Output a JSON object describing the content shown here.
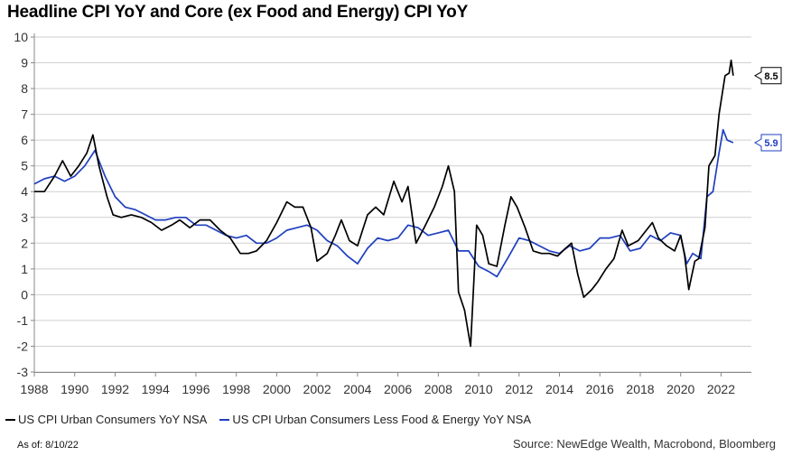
{
  "title": "Headline CPI YoY and Core (ex Food and Energy) CPI YoY",
  "legend": {
    "headline": "US CPI Urban Consumers YoY NSA",
    "core": "US CPI Urban Consumers Less Food & Energy YoY NSA"
  },
  "as_of": "As of: 8/10/22",
  "source": "Source: NewEdge Wealth, Macrobond, Bloomberg",
  "colors": {
    "headline": "#000000",
    "core": "#1f3fbf",
    "grid": "#cfcfcf"
  },
  "chart_data": {
    "type": "line",
    "title": "Headline CPI YoY and Core (ex Food and Energy) CPI YoY",
    "xlim": [
      1988,
      2023.5
    ],
    "ylim": [
      -3,
      10
    ],
    "x_ticks": [
      1988,
      1990,
      1992,
      1994,
      1996,
      1998,
      2000,
      2002,
      2004,
      2006,
      2008,
      2010,
      2012,
      2014,
      2016,
      2018,
      2020,
      2022
    ],
    "y_ticks": [
      -3,
      -2,
      -1,
      0,
      1,
      2,
      3,
      4,
      5,
      6,
      7,
      8,
      9,
      10
    ],
    "grid": "horizontal",
    "legend_position": "bottom",
    "series": [
      {
        "name": "US CPI Urban Consumers YoY NSA",
        "color": "#000000",
        "x": [
          1988.0,
          1988.5,
          1989.0,
          1989.4,
          1989.8,
          1990.2,
          1990.6,
          1990.9,
          1991.2,
          1991.6,
          1991.9,
          1992.3,
          1992.8,
          1993.3,
          1993.8,
          1994.3,
          1994.8,
          1995.2,
          1995.7,
          1996.2,
          1996.7,
          1997.2,
          1997.7,
          1998.2,
          1998.6,
          1999.0,
          1999.5,
          2000.0,
          2000.5,
          2000.9,
          2001.3,
          2001.7,
          2002.0,
          2002.5,
          2002.9,
          2003.2,
          2003.6,
          2004.0,
          2004.5,
          2004.9,
          2005.3,
          2005.8,
          2006.2,
          2006.5,
          2006.9,
          2007.3,
          2007.8,
          2008.2,
          2008.5,
          2008.8,
          2009.0,
          2009.3,
          2009.6,
          2009.9,
          2010.2,
          2010.5,
          2010.9,
          2011.3,
          2011.6,
          2011.9,
          2012.3,
          2012.7,
          2013.1,
          2013.5,
          2013.9,
          2014.3,
          2014.6,
          2014.9,
          2015.2,
          2015.6,
          2015.9,
          2016.3,
          2016.7,
          2017.1,
          2017.4,
          2017.9,
          2018.3,
          2018.6,
          2018.9,
          2019.3,
          2019.7,
          2020.0,
          2020.2,
          2020.4,
          2020.7,
          2020.9,
          2021.2,
          2021.4,
          2021.7,
          2021.9,
          2022.2,
          2022.4,
          2022.5,
          2022.6
        ],
        "values": [
          4.0,
          4.0,
          4.6,
          5.2,
          4.6,
          5.0,
          5.5,
          6.2,
          5.0,
          3.8,
          3.1,
          3.0,
          3.1,
          3.0,
          2.8,
          2.5,
          2.7,
          2.9,
          2.6,
          2.9,
          2.9,
          2.5,
          2.2,
          1.6,
          1.6,
          1.7,
          2.1,
          2.8,
          3.6,
          3.4,
          3.4,
          2.6,
          1.3,
          1.6,
          2.3,
          2.9,
          2.1,
          1.9,
          3.1,
          3.4,
          3.1,
          4.4,
          3.6,
          4.2,
          2.0,
          2.6,
          3.4,
          4.2,
          5.0,
          4.0,
          0.1,
          -0.6,
          -2.0,
          2.7,
          2.3,
          1.2,
          1.1,
          2.7,
          3.8,
          3.4,
          2.6,
          1.7,
          1.6,
          1.6,
          1.5,
          1.8,
          2.0,
          0.8,
          -0.1,
          0.2,
          0.5,
          1.0,
          1.4,
          2.5,
          1.9,
          2.1,
          2.5,
          2.8,
          2.2,
          1.9,
          1.7,
          2.3,
          1.5,
          0.2,
          1.3,
          1.4,
          2.6,
          5.0,
          5.4,
          7.0,
          8.5,
          8.6,
          9.1,
          8.5
        ]
      },
      {
        "name": "US CPI Urban Consumers Less Food & Energy YoY NSA",
        "color": "#1f3fbf",
        "x": [
          1988.0,
          1988.5,
          1989.0,
          1989.5,
          1990.0,
          1990.5,
          1991.0,
          1991.5,
          1992.0,
          1992.5,
          1993.0,
          1993.5,
          1994.0,
          1994.5,
          1995.0,
          1995.5,
          1996.0,
          1996.5,
          1997.0,
          1997.5,
          1998.0,
          1998.5,
          1999.0,
          1999.5,
          2000.0,
          2000.5,
          2001.0,
          2001.5,
          2002.0,
          2002.5,
          2003.0,
          2003.5,
          2004.0,
          2004.5,
          2005.0,
          2005.5,
          2006.0,
          2006.5,
          2007.0,
          2007.5,
          2008.0,
          2008.5,
          2009.0,
          2009.5,
          2010.0,
          2010.5,
          2010.9,
          2011.5,
          2012.0,
          2012.5,
          2013.0,
          2013.5,
          2014.0,
          2014.5,
          2015.0,
          2015.5,
          2016.0,
          2016.5,
          2017.0,
          2017.5,
          2018.0,
          2018.5,
          2019.0,
          2019.5,
          2020.0,
          2020.3,
          2020.6,
          2021.0,
          2021.3,
          2021.6,
          2021.9,
          2022.1,
          2022.3,
          2022.6
        ],
        "values": [
          4.3,
          4.5,
          4.6,
          4.4,
          4.6,
          5.0,
          5.6,
          4.6,
          3.8,
          3.4,
          3.3,
          3.1,
          2.9,
          2.9,
          3.0,
          3.0,
          2.7,
          2.7,
          2.5,
          2.3,
          2.2,
          2.3,
          2.0,
          2.0,
          2.2,
          2.5,
          2.6,
          2.7,
          2.5,
          2.1,
          1.9,
          1.5,
          1.2,
          1.8,
          2.2,
          2.1,
          2.2,
          2.7,
          2.6,
          2.3,
          2.4,
          2.5,
          1.7,
          1.7,
          1.1,
          0.9,
          0.7,
          1.5,
          2.2,
          2.1,
          1.9,
          1.7,
          1.6,
          1.9,
          1.7,
          1.8,
          2.2,
          2.2,
          2.3,
          1.7,
          1.8,
          2.3,
          2.1,
          2.4,
          2.3,
          1.2,
          1.6,
          1.4,
          3.8,
          4.0,
          5.5,
          6.4,
          6.0,
          5.9
        ]
      }
    ],
    "annotations": [
      {
        "label": "8.5",
        "series": 0,
        "value": 8.5
      },
      {
        "label": "5.9",
        "series": 1,
        "value": 5.9
      }
    ]
  }
}
